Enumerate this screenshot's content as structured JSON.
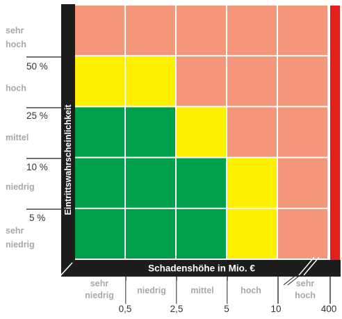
{
  "y_axis": {
    "title": "Eintrittswahrscheinlichkeit",
    "categories": [
      "sehr hoch",
      "hoch",
      "mittel",
      "niedrig",
      "sehr niedrig"
    ],
    "thresholds": [
      "50 %",
      "25 %",
      "10 %",
      "5 %"
    ]
  },
  "x_axis": {
    "title": "Schadenshöhe in Mio. €",
    "categories": [
      "sehr niedrig",
      "niedrig",
      "mittel",
      "hoch",
      "sehr hoch"
    ],
    "thresholds": [
      "0,5",
      "2,5",
      "5",
      "10",
      "400"
    ]
  },
  "risk_grid": [
    [
      "salmon",
      "salmon",
      "salmon",
      "salmon",
      "salmon"
    ],
    [
      "yellow",
      "yellow",
      "salmon",
      "salmon",
      "salmon"
    ],
    [
      "green",
      "green",
      "yellow",
      "salmon",
      "salmon"
    ],
    [
      "green",
      "green",
      "green",
      "yellow",
      "salmon"
    ],
    [
      "green",
      "green",
      "green",
      "yellow",
      "salmon"
    ]
  ],
  "colors": {
    "green": "#00a04a",
    "yellow": "#fff000",
    "salmon": "#f4967a",
    "red_edge": "#e3201b",
    "axis": "#1d1d1b"
  }
}
